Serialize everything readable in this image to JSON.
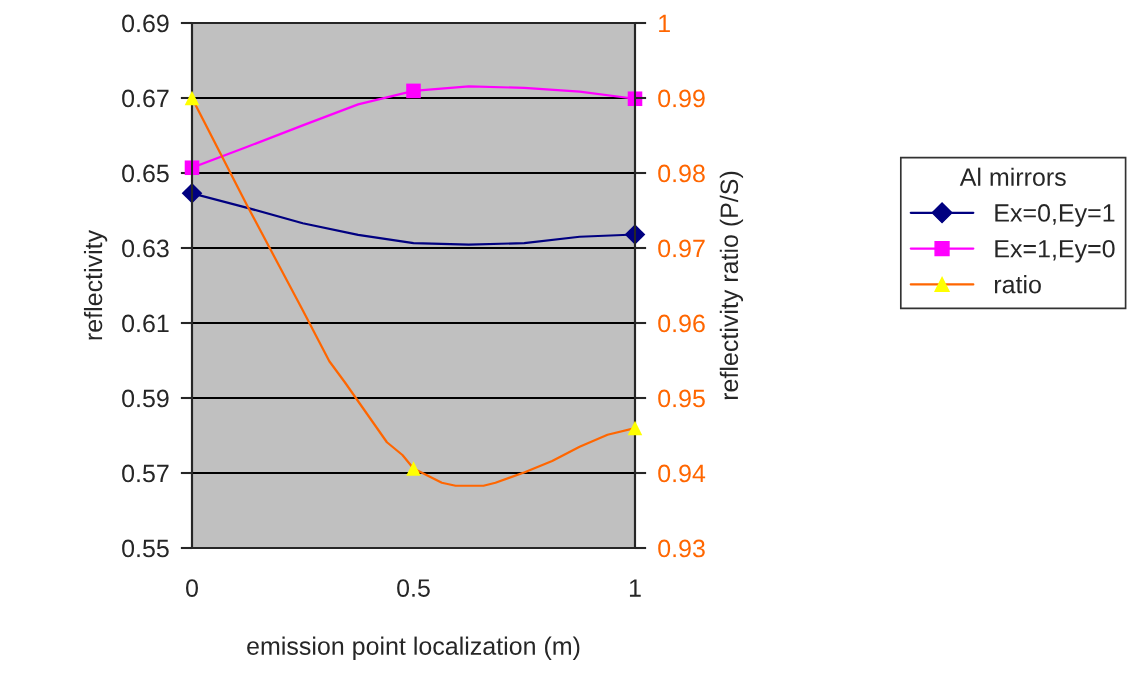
{
  "chart_data": {
    "type": "line",
    "xlabel": "emission point localization (m)",
    "ylabel": "reflectivity",
    "y2label": "reflectivity ratio (P/S)",
    "legend_title": "Al mirrors",
    "series": [
      {
        "color": "#000080",
        "x": [
          0,
          0.125,
          0.25,
          0.375,
          0.5,
          0.625,
          0.75,
          0.875,
          1
        ],
        "values": [
          0.6446,
          0.6407,
          0.6366,
          0.6335,
          0.6313,
          0.6309,
          0.6313,
          0.633,
          0.6336
        ]
      },
      {
        "name": "Ex=0,Ey=1",
        "type": "scatter",
        "color": "#000080",
        "marker": "diamond",
        "x": [
          0,
          1
        ],
        "values": [
          0.6446,
          0.6336
        ]
      },
      {
        "color": "#ff00ff",
        "x": [
          0,
          0.125,
          0.25,
          0.375,
          0.5,
          0.625,
          0.75,
          0.875,
          1
        ],
        "values": [
          0.6514,
          0.657,
          0.6627,
          0.6683,
          0.6719,
          0.6731,
          0.6727,
          0.6717,
          0.6698
        ]
      },
      {
        "name": "Ex=1,Ey=0",
        "type": "scatter",
        "color": "#ff00ff",
        "marker": "square",
        "x": [
          0,
          0.5,
          1
        ],
        "values": [
          0.6514,
          0.6719,
          0.6698
        ]
      },
      {
        "color": "#ff6600",
        "axis": "y2",
        "x": [
          0,
          0.125,
          0.25,
          0.31,
          0.345,
          0.377,
          0.44,
          0.475,
          0.5,
          0.564,
          0.595,
          0.658,
          0.685,
          0.751,
          0.813,
          0.875,
          0.938,
          1
        ],
        "values": [
          0.99,
          0.9756,
          0.9617,
          0.9549,
          0.9521,
          0.9494,
          0.9441,
          0.9424,
          0.9406,
          0.9387,
          0.9383,
          0.9383,
          0.9387,
          0.9401,
          0.9416,
          0.9435,
          0.9451,
          0.946
        ]
      },
      {
        "name": "ratio",
        "type": "scatter",
        "color": "#ffff00",
        "marker": "triangle",
        "axis": "y2",
        "x": [
          0,
          0.5,
          1
        ],
        "values": [
          0.99,
          0.9406,
          0.946
        ]
      }
    ],
    "xlim": [
      0,
      1
    ],
    "xticks": [
      0,
      0.5,
      1
    ],
    "ylim": [
      0.55,
      0.69
    ],
    "yticks": [
      0.55,
      0.57,
      0.59,
      0.61,
      0.63,
      0.65,
      0.67,
      0.69
    ],
    "y2lim": [
      0.93,
      1
    ],
    "y2ticks": [
      0.93,
      0.94,
      0.95,
      0.96,
      0.97,
      0.98,
      0.99,
      1
    ],
    "grid": "y",
    "legend": "right"
  }
}
